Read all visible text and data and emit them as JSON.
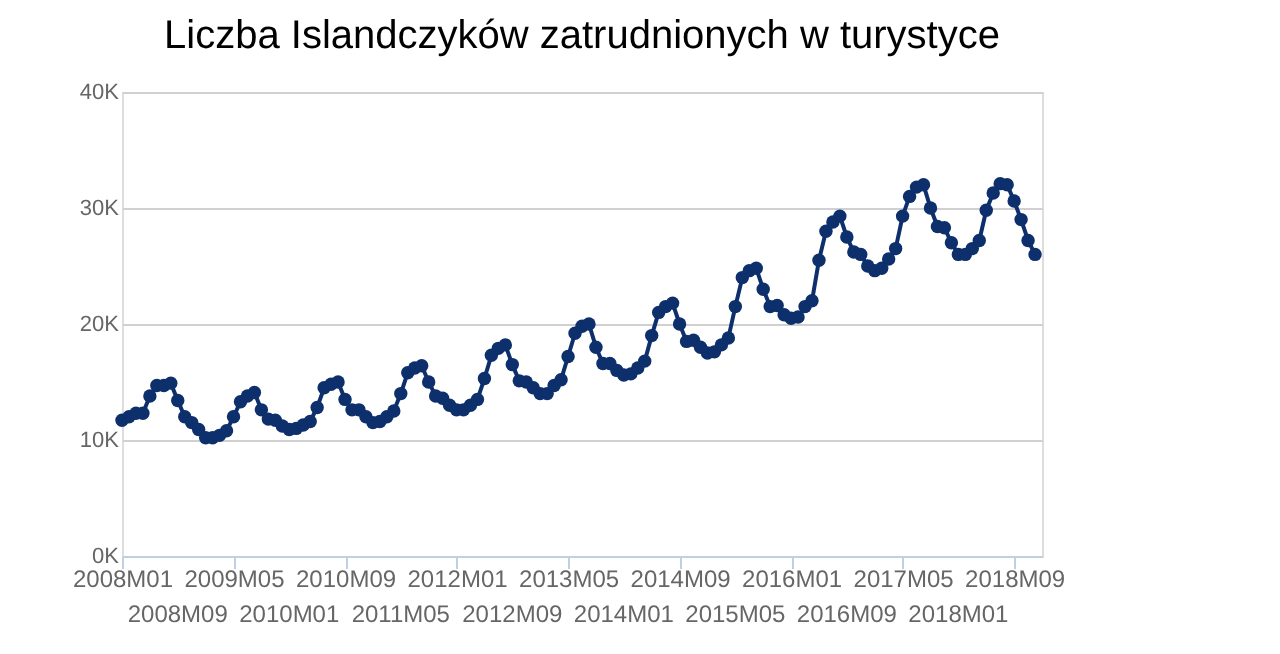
{
  "chart_data": {
    "type": "line",
    "title": "Liczba Islandczyków zatrudnionych w turystyce",
    "categories": [
      "2008M01",
      null,
      null,
      null,
      null,
      null,
      null,
      null,
      "2008M09",
      null,
      null,
      null,
      null,
      null,
      null,
      null,
      "2009M05",
      null,
      null,
      null,
      null,
      null,
      null,
      null,
      "2010M01",
      null,
      null,
      null,
      null,
      null,
      null,
      null,
      "2010M09",
      null,
      null,
      null,
      null,
      null,
      null,
      null,
      "2011M05",
      null,
      null,
      null,
      null,
      null,
      null,
      null,
      "2012M01",
      null,
      null,
      null,
      null,
      null,
      null,
      null,
      "2012M09",
      null,
      null,
      null,
      null,
      null,
      null,
      null,
      "2013M05",
      null,
      null,
      null,
      null,
      null,
      null,
      null,
      "2014M01",
      null,
      null,
      null,
      null,
      null,
      null,
      null,
      "2014M09",
      null,
      null,
      null,
      null,
      null,
      null,
      null,
      "2015M05",
      null,
      null,
      null,
      null,
      null,
      null,
      null,
      "2016M01",
      null,
      null,
      null,
      null,
      null,
      null,
      null,
      "2016M09",
      null,
      null,
      null,
      null,
      null,
      null,
      null,
      "2017M05",
      null,
      null,
      null,
      null,
      null,
      null,
      null,
      "2018M01",
      null,
      null,
      null,
      null,
      null,
      null,
      null,
      "2018M09",
      null,
      null,
      null
    ],
    "series": [
      {
        "color": "#0d2f6b",
        "values": [
          11700,
          12000,
          12300,
          12300,
          13800,
          14700,
          14700,
          14900,
          13400,
          12000,
          11500,
          10900,
          10200,
          10200,
          10400,
          10800,
          12000,
          13300,
          13800,
          14100,
          12600,
          11800,
          11700,
          11200,
          10900,
          11000,
          11300,
          11600,
          12800,
          14500,
          14800,
          15000,
          13500,
          12600,
          12600,
          12000,
          11500,
          11600,
          12000,
          12500,
          14000,
          15800,
          16200,
          16400,
          15000,
          13800,
          13600,
          13000,
          12600,
          12600,
          13000,
          13500,
          15300,
          17300,
          17900,
          18200,
          16500,
          15100,
          15000,
          14500,
          14000,
          14000,
          14700,
          15200,
          17200,
          19200,
          19800,
          20000,
          18000,
          16600,
          16600,
          16000,
          15600,
          15700,
          16200,
          16800,
          19000,
          21000,
          21500,
          21800,
          20000,
          18500,
          18600,
          18000,
          17500,
          17600,
          18200,
          18800,
          21500,
          24000,
          24600,
          24800,
          23000,
          21500,
          21600,
          20800,
          20500,
          20600,
          21500,
          22000,
          25500,
          28000,
          28800,
          29300,
          27500,
          26200,
          26000,
          25000,
          24600,
          24800,
          25600,
          26500,
          29300,
          31000,
          31800,
          32000,
          30000,
          28400,
          28300,
          27000,
          26000,
          26000,
          26500,
          27200,
          29800,
          31300,
          32100,
          32000,
          30600,
          29000,
          27200,
          26000
        ]
      }
    ],
    "ylim": [
      0,
      40000
    ],
    "yticks": [
      {
        "value": 0,
        "label": "0K"
      },
      {
        "value": 10000,
        "label": "10K"
      },
      {
        "value": 20000,
        "label": "20K"
      },
      {
        "value": 30000,
        "label": "30K"
      },
      {
        "value": 40000,
        "label": "40K"
      }
    ],
    "grid": "y",
    "marker": "circle",
    "line_style": "solid"
  }
}
